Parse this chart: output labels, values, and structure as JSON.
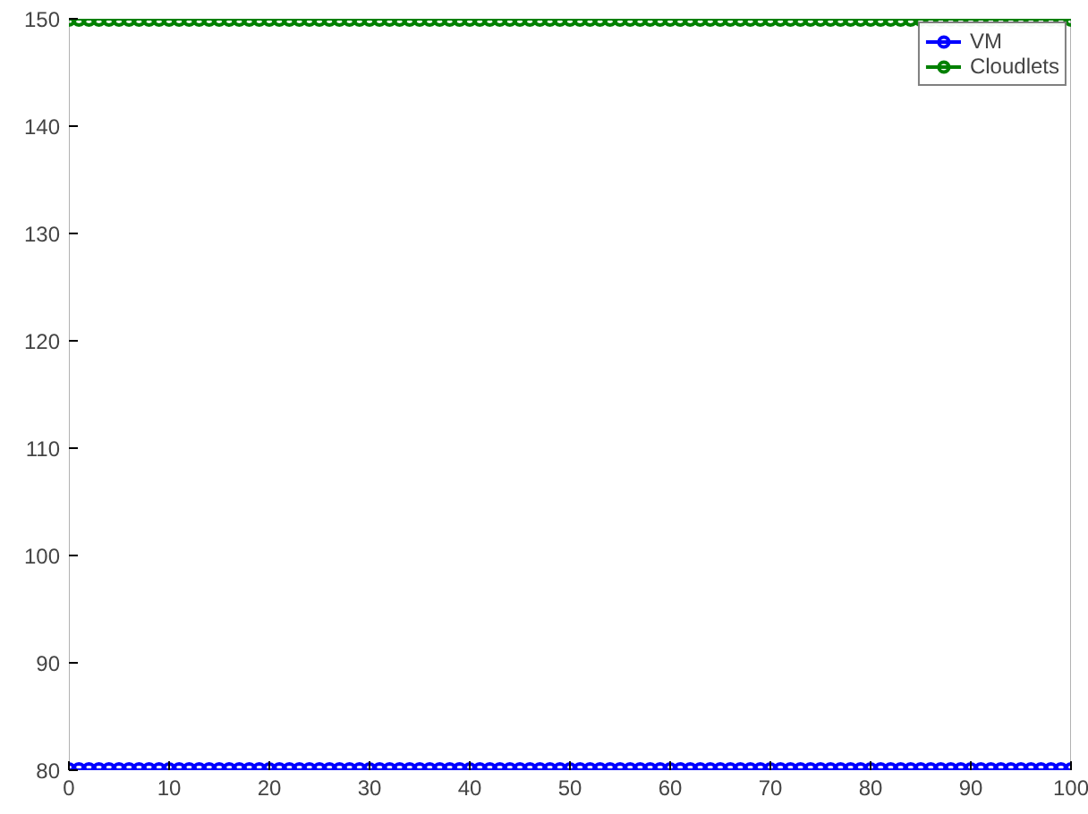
{
  "chart_data": {
    "type": "line",
    "x": [
      0,
      1,
      2,
      3,
      4,
      5,
      6,
      7,
      8,
      9,
      10,
      11,
      12,
      13,
      14,
      15,
      16,
      17,
      18,
      19,
      20,
      21,
      22,
      23,
      24,
      25,
      26,
      27,
      28,
      29,
      30,
      31,
      32,
      33,
      34,
      35,
      36,
      37,
      38,
      39,
      40,
      41,
      42,
      43,
      44,
      45,
      46,
      47,
      48,
      49,
      50,
      51,
      52,
      53,
      54,
      55,
      56,
      57,
      58,
      59,
      60,
      61,
      62,
      63,
      64,
      65,
      66,
      67,
      68,
      69,
      70,
      71,
      72,
      73,
      74,
      75,
      76,
      77,
      78,
      79,
      80,
      81,
      82,
      83,
      84,
      85,
      86,
      87,
      88,
      89,
      90,
      91,
      92,
      93,
      94,
      95,
      96,
      97,
      98,
      99,
      100
    ],
    "series": [
      {
        "name": "VM",
        "color": "#0000ff",
        "values": [
          80,
          80,
          80,
          80,
          80,
          80,
          80,
          80,
          80,
          80,
          80,
          80,
          80,
          80,
          80,
          80,
          80,
          80,
          80,
          80,
          80,
          80,
          80,
          80,
          80,
          80,
          80,
          80,
          80,
          80,
          80,
          80,
          80,
          80,
          80,
          80,
          80,
          80,
          80,
          80,
          80,
          80,
          80,
          80,
          80,
          80,
          80,
          80,
          80,
          80,
          80,
          80,
          80,
          80,
          80,
          80,
          80,
          80,
          80,
          80,
          80,
          80,
          80,
          80,
          80,
          80,
          80,
          80,
          80,
          80,
          80,
          80,
          80,
          80,
          80,
          80,
          80,
          80,
          80,
          80,
          80,
          80,
          80,
          80,
          80,
          80,
          80,
          80,
          80,
          80,
          80,
          80,
          80,
          80,
          80,
          80,
          80,
          80,
          80,
          80,
          80
        ]
      },
      {
        "name": "Cloudlets",
        "color": "#008000",
        "values": [
          150,
          150,
          150,
          150,
          150,
          150,
          150,
          150,
          150,
          150,
          150,
          150,
          150,
          150,
          150,
          150,
          150,
          150,
          150,
          150,
          150,
          150,
          150,
          150,
          150,
          150,
          150,
          150,
          150,
          150,
          150,
          150,
          150,
          150,
          150,
          150,
          150,
          150,
          150,
          150,
          150,
          150,
          150,
          150,
          150,
          150,
          150,
          150,
          150,
          150,
          150,
          150,
          150,
          150,
          150,
          150,
          150,
          150,
          150,
          150,
          150,
          150,
          150,
          150,
          150,
          150,
          150,
          150,
          150,
          150,
          150,
          150,
          150,
          150,
          150,
          150,
          150,
          150,
          150,
          150,
          150,
          150,
          150,
          150,
          150,
          150,
          150,
          150,
          150,
          150,
          150,
          150,
          150,
          150,
          150,
          150,
          150,
          150,
          150,
          150,
          150
        ]
      }
    ],
    "xlim": [
      0,
      100
    ],
    "ylim": [
      80,
      150
    ],
    "xticks": [
      0,
      10,
      20,
      30,
      40,
      50,
      60,
      70,
      80,
      90,
      100
    ],
    "yticks": [
      80,
      90,
      100,
      110,
      120,
      130,
      140,
      150
    ],
    "grid": false,
    "legend": "top right",
    "marker": "circle",
    "line_style": "solid"
  }
}
